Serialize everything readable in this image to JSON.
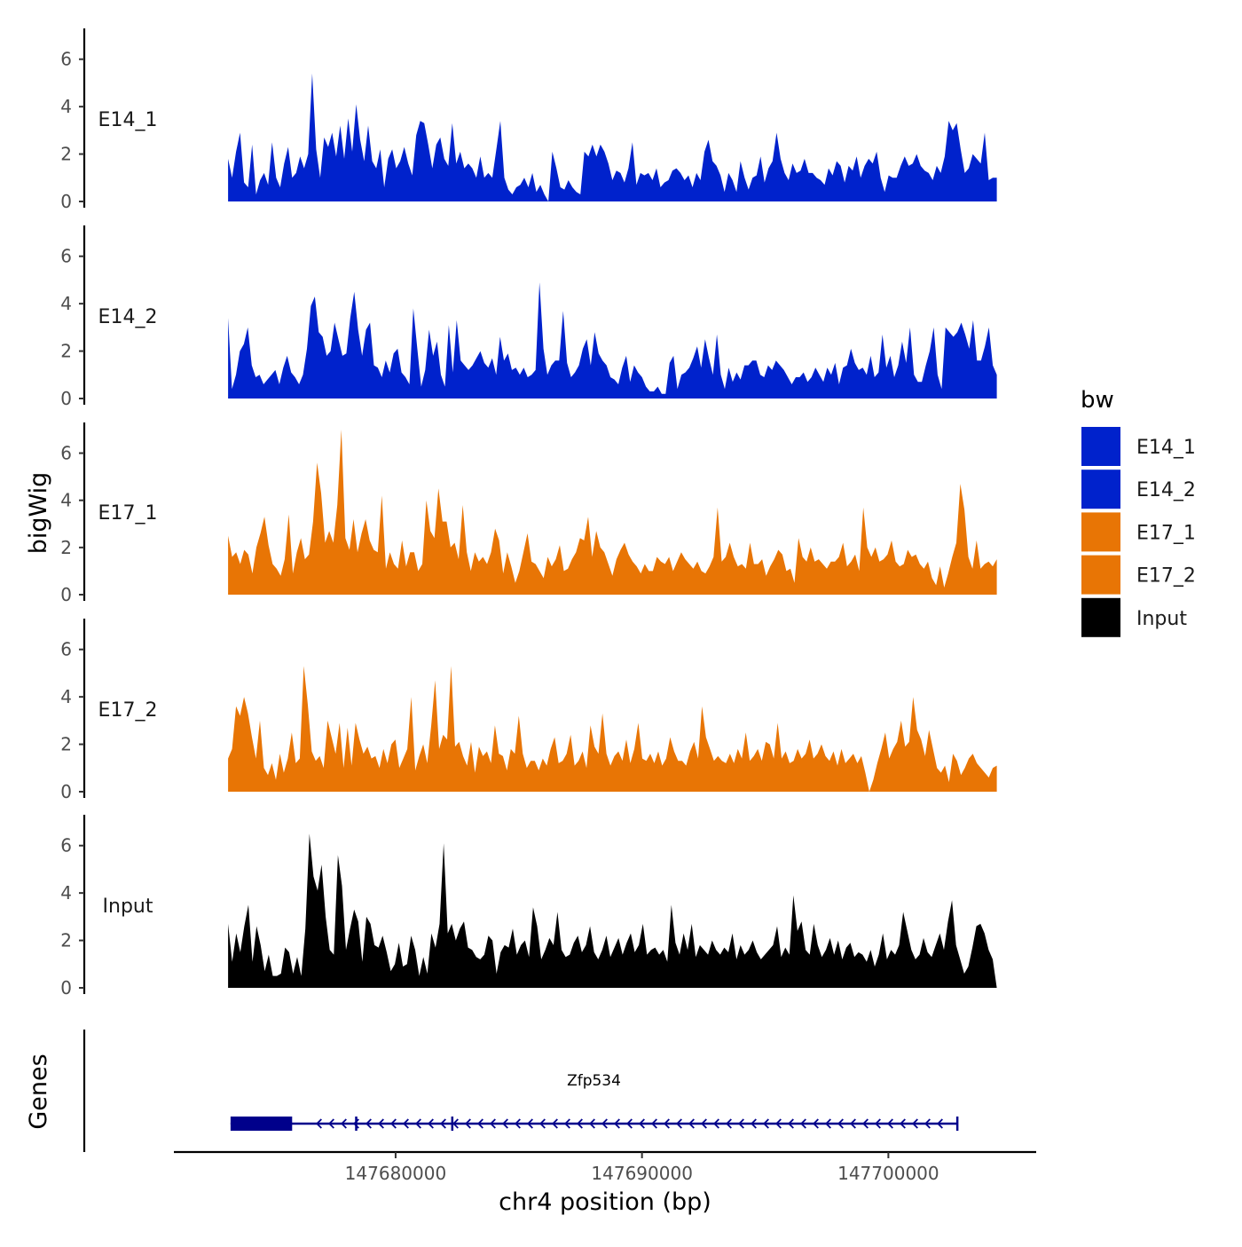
{
  "chart_data": {
    "type": "area",
    "ylabel": "bigWig",
    "xlabel": "chr4 position (bp)",
    "genes_label": "Genes",
    "xlim": [
      147671000,
      147706000
    ],
    "x_ticks": [
      147680000,
      147690000,
      147700000
    ],
    "x_tick_labels": [
      "147680000",
      "147690000",
      "147700000"
    ],
    "ylim": [
      0,
      7.3
    ],
    "y_ticks": [
      0,
      2,
      4,
      6
    ],
    "y_tick_labels": [
      "0",
      "2",
      "4",
      "6"
    ],
    "legend": {
      "title": "bw",
      "entries": [
        {
          "label": "E14_1",
          "color": "#0022cc"
        },
        {
          "label": "E14_2",
          "color": "#0022cc"
        },
        {
          "label": "E17_1",
          "color": "#e87505"
        },
        {
          "label": "E17_2",
          "color": "#e87505"
        },
        {
          "label": "Input",
          "color": "#000000"
        }
      ]
    },
    "x_start": 147673200,
    "x_end": 147704400,
    "tracks": [
      {
        "name": "E14_1",
        "color": "#0022cc",
        "values": [
          1.8,
          1.0,
          2.1,
          2.9,
          0.8,
          0.6,
          2.4,
          0.3,
          0.9,
          1.2,
          0.7,
          2.5,
          1.0,
          0.6,
          1.6,
          2.3,
          1.0,
          1.2,
          1.9,
          1.4,
          2.0,
          5.4,
          2.2,
          1.0,
          2.7,
          2.3,
          2.9,
          1.9,
          3.2,
          1.8,
          3.5,
          2.1,
          4.1,
          2.6,
          1.7,
          3.2,
          1.7,
          1.4,
          2.2,
          0.6,
          1.8,
          2.2,
          1.4,
          1.7,
          2.3,
          1.6,
          1.1,
          2.8,
          3.4,
          3.3,
          2.4,
          1.4,
          2.4,
          2.7,
          1.8,
          1.5,
          3.3,
          1.6,
          2.1,
          1.4,
          1.6,
          1.4,
          1.0,
          1.9,
          1.0,
          1.2,
          1.0,
          2.2,
          3.4,
          1.0,
          0.5,
          0.3,
          0.6,
          0.7,
          1.0,
          0.6,
          1.2,
          0.4,
          0.7,
          0.3,
          0.0,
          2.1,
          1.4,
          0.6,
          0.5,
          0.9,
          0.6,
          0.4,
          0.3,
          2.1,
          1.9,
          2.4,
          1.9,
          2.4,
          2.1,
          1.6,
          0.9,
          1.3,
          1.2,
          0.8,
          1.4,
          2.5,
          0.7,
          1.2,
          1.1,
          1.2,
          0.9,
          1.4,
          0.6,
          0.8,
          0.9,
          1.3,
          1.4,
          1.2,
          0.9,
          1.1,
          0.6,
          1.2,
          0.9,
          2.1,
          2.6,
          1.7,
          1.5,
          1.1,
          0.4,
          1.2,
          0.9,
          0.4,
          1.7,
          1.0,
          0.5,
          1.0,
          1.1,
          1.9,
          0.8,
          1.4,
          1.7,
          2.9,
          1.8,
          1.2,
          0.9,
          1.6,
          1.2,
          1.3,
          1.8,
          1.2,
          1.2,
          1.0,
          0.9,
          0.7,
          1.4,
          1.1,
          1.7,
          1.5,
          0.8,
          1.5,
          1.3,
          1.9,
          1.0,
          1.5,
          1.8,
          1.6,
          2.1,
          1.0,
          0.4,
          1.1,
          1.0,
          1.0,
          1.5,
          1.9,
          1.5,
          1.6,
          2.0,
          1.5,
          1.3,
          1.2,
          0.9,
          1.5,
          1.2,
          1.9,
          3.4,
          3.0,
          3.3,
          2.2,
          1.2,
          1.4,
          2.0,
          1.8,
          1.6,
          2.9,
          0.9,
          1.0,
          1.0
        ]
      },
      {
        "name": "E14_2",
        "color": "#0022cc",
        "values": [
          3.4,
          0.4,
          1.0,
          2.0,
          2.3,
          3.0,
          1.4,
          0.9,
          1.0,
          0.6,
          0.8,
          1.0,
          1.2,
          0.6,
          1.3,
          1.8,
          1.1,
          0.9,
          0.6,
          1.0,
          2.1,
          3.9,
          4.3,
          2.8,
          2.6,
          1.8,
          2.0,
          3.2,
          2.5,
          1.8,
          1.9,
          3.4,
          4.5,
          2.9,
          1.8,
          2.9,
          3.2,
          1.4,
          1.3,
          0.9,
          1.6,
          1.1,
          1.9,
          2.1,
          1.1,
          0.9,
          0.6,
          3.8,
          2.1,
          0.5,
          1.2,
          2.9,
          1.8,
          2.4,
          1.0,
          0.5,
          3.1,
          1.1,
          3.3,
          1.6,
          1.4,
          1.2,
          1.4,
          1.7,
          2.0,
          1.5,
          1.3,
          1.7,
          1.0,
          2.6,
          1.6,
          1.9,
          1.2,
          1.3,
          1.0,
          1.3,
          0.9,
          1.0,
          1.2,
          4.9,
          2.1,
          1.0,
          1.4,
          1.6,
          1.6,
          3.7,
          1.5,
          0.9,
          1.1,
          1.4,
          2.1,
          2.5,
          1.4,
          2.8,
          1.9,
          1.6,
          1.4,
          0.9,
          0.8,
          0.6,
          1.3,
          1.8,
          0.7,
          1.4,
          1.1,
          0.9,
          0.5,
          0.3,
          0.3,
          0.5,
          0.2,
          0.2,
          1.5,
          1.8,
          0.4,
          1.0,
          1.1,
          1.3,
          1.7,
          2.2,
          1.3,
          2.5,
          1.7,
          1.0,
          2.7,
          1.0,
          0.4,
          1.3,
          0.7,
          1.1,
          0.8,
          1.4,
          1.4,
          1.6,
          1.6,
          1.0,
          0.9,
          1.4,
          1.2,
          1.6,
          1.4,
          1.2,
          0.9,
          0.6,
          0.9,
          0.9,
          1.1,
          0.7,
          0.9,
          1.3,
          1.0,
          0.7,
          1.3,
          1.0,
          1.5,
          0.6,
          1.3,
          1.4,
          2.1,
          1.5,
          1.2,
          1.3,
          1.0,
          1.8,
          0.9,
          1.1,
          2.7,
          1.3,
          1.8,
          0.9,
          1.4,
          2.4,
          1.5,
          3.0,
          1.0,
          0.7,
          0.7,
          1.4,
          2.0,
          3.0,
          1.0,
          0.4,
          3.0,
          2.8,
          2.6,
          2.8,
          3.2,
          2.7,
          2.1,
          3.3,
          1.6,
          1.6,
          2.2,
          3.0,
          1.4,
          1.0
        ]
      },
      {
        "name": "E17_1",
        "color": "#e87505",
        "values": [
          2.5,
          1.6,
          1.8,
          1.3,
          1.9,
          1.7,
          0.9,
          2.0,
          2.6,
          3.3,
          2.1,
          1.3,
          1.1,
          0.8,
          1.5,
          3.4,
          0.9,
          1.8,
          2.4,
          1.5,
          1.7,
          3.1,
          5.6,
          4.3,
          2.2,
          2.7,
          2.2,
          3.8,
          7.0,
          2.4,
          1.9,
          3.2,
          1.8,
          2.6,
          3.2,
          2.3,
          1.9,
          1.8,
          4.2,
          1.1,
          1.8,
          1.3,
          1.1,
          2.3,
          1.2,
          1.8,
          1.8,
          1.0,
          1.3,
          4.0,
          2.7,
          2.4,
          4.5,
          3.1,
          3.1,
          2.0,
          2.2,
          1.5,
          3.8,
          1.8,
          1.0,
          1.8,
          1.4,
          1.6,
          1.3,
          1.8,
          2.8,
          2.3,
          0.9,
          1.8,
          1.2,
          0.5,
          1.0,
          1.8,
          2.6,
          1.4,
          1.3,
          1.0,
          0.7,
          1.6,
          1.2,
          1.5,
          2.1,
          1.0,
          1.1,
          1.5,
          1.8,
          2.4,
          2.3,
          3.3,
          1.6,
          2.7,
          2.0,
          1.8,
          1.3,
          0.8,
          1.5,
          1.9,
          2.2,
          1.7,
          1.4,
          1.2,
          0.9,
          1.3,
          1.0,
          1.0,
          1.6,
          1.4,
          1.3,
          1.6,
          1.0,
          1.4,
          1.8,
          1.5,
          1.3,
          1.1,
          1.4,
          1.0,
          0.9,
          1.2,
          1.6,
          3.7,
          1.4,
          1.6,
          2.2,
          1.6,
          1.2,
          1.3,
          1.1,
          2.2,
          1.3,
          1.3,
          1.5,
          0.8,
          1.2,
          1.5,
          1.9,
          1.7,
          1.0,
          1.1,
          0.5,
          2.4,
          1.6,
          1.4,
          2.0,
          1.4,
          1.5,
          1.3,
          1.1,
          1.4,
          1.4,
          1.6,
          2.2,
          1.2,
          1.4,
          1.7,
          1.0,
          3.7,
          2.0,
          1.6,
          2.0,
          1.4,
          1.5,
          1.7,
          2.3,
          1.4,
          1.2,
          1.3,
          1.9,
          1.6,
          1.7,
          1.3,
          1.1,
          1.4,
          0.7,
          0.4,
          1.2,
          0.3,
          0.9,
          1.6,
          2.2,
          4.7,
          3.6,
          1.6,
          1.1,
          2.3,
          1.1,
          1.3,
          1.4,
          1.2,
          1.5
        ]
      },
      {
        "name": "E17_2",
        "color": "#e87505",
        "values": [
          1.4,
          1.8,
          3.6,
          3.2,
          4.0,
          3.3,
          2.3,
          1.4,
          3.0,
          1.0,
          0.7,
          1.2,
          0.5,
          1.6,
          0.8,
          1.4,
          2.5,
          1.2,
          1.4,
          5.3,
          3.7,
          1.7,
          1.3,
          1.5,
          1.0,
          3.0,
          2.3,
          1.6,
          2.9,
          1.0,
          2.7,
          1.1,
          2.9,
          2.2,
          1.6,
          1.9,
          1.4,
          1.5,
          1.0,
          1.8,
          1.2,
          2.0,
          2.2,
          1.0,
          1.4,
          1.8,
          4.0,
          0.9,
          1.5,
          2.0,
          1.2,
          2.8,
          4.7,
          1.8,
          2.4,
          2.2,
          5.3,
          1.9,
          2.1,
          1.5,
          1.1,
          2.1,
          0.8,
          1.9,
          1.5,
          1.7,
          1.2,
          2.8,
          1.6,
          1.5,
          0.9,
          1.8,
          1.6,
          3.2,
          1.6,
          1.0,
          1.3,
          1.3,
          0.9,
          1.4,
          1.1,
          1.8,
          2.3,
          1.2,
          1.3,
          1.6,
          2.4,
          1.1,
          1.3,
          1.7,
          1.0,
          2.8,
          1.9,
          1.6,
          3.3,
          1.6,
          1.1,
          1.5,
          1.7,
          1.3,
          2.2,
          1.2,
          1.8,
          2.9,
          1.4,
          1.3,
          1.6,
          1.2,
          1.7,
          1.1,
          1.4,
          2.3,
          1.7,
          1.3,
          1.3,
          1.1,
          1.7,
          2.1,
          1.4,
          3.6,
          2.3,
          1.8,
          1.3,
          1.5,
          1.3,
          1.2,
          1.6,
          1.2,
          1.8,
          1.4,
          2.5,
          1.3,
          1.5,
          1.8,
          1.3,
          2.1,
          2.0,
          1.4,
          2.9,
          1.4,
          1.7,
          1.2,
          1.3,
          1.8,
          1.4,
          1.6,
          2.2,
          1.4,
          1.6,
          2.0,
          1.5,
          1.3,
          1.7,
          1.1,
          1.8,
          1.2,
          1.4,
          1.6,
          1.2,
          1.5,
          0.8,
          0.0,
          0.5,
          1.2,
          1.8,
          2.5,
          1.4,
          1.8,
          2.1,
          3.0,
          1.9,
          2.1,
          4.0,
          2.6,
          2.2,
          1.5,
          2.6,
          1.8,
          1.0,
          0.8,
          1.1,
          0.4,
          1.6,
          1.3,
          0.7,
          1.0,
          1.4,
          1.6,
          1.2,
          1.0,
          0.8,
          0.6,
          1.0,
          1.1
        ]
      },
      {
        "name": "Input",
        "color": "#000000",
        "values": [
          2.7,
          1.1,
          2.3,
          1.5,
          2.6,
          3.5,
          1.1,
          2.6,
          1.8,
          0.7,
          1.4,
          0.5,
          0.5,
          0.6,
          1.7,
          1.5,
          0.6,
          1.3,
          0.5,
          2.5,
          6.5,
          4.7,
          4.1,
          5.2,
          3.0,
          1.6,
          1.4,
          5.6,
          4.3,
          1.6,
          2.5,
          3.3,
          2.8,
          1.1,
          3.0,
          2.7,
          1.8,
          1.7,
          2.2,
          1.5,
          0.7,
          1.0,
          1.9,
          0.9,
          1.0,
          2.2,
          1.6,
          0.5,
          1.3,
          0.6,
          2.3,
          1.7,
          2.7,
          6.1,
          2.3,
          2.7,
          2.0,
          2.5,
          2.8,
          1.7,
          1.6,
          1.3,
          1.2,
          1.4,
          2.2,
          2.0,
          0.6,
          1.5,
          1.8,
          1.7,
          2.5,
          1.4,
          1.8,
          2.0,
          1.3,
          3.4,
          2.6,
          1.2,
          1.6,
          2.1,
          1.8,
          3.2,
          1.6,
          1.3,
          1.4,
          1.9,
          2.2,
          1.5,
          1.8,
          2.6,
          1.5,
          1.2,
          1.6,
          2.2,
          1.3,
          1.7,
          2.1,
          1.4,
          1.9,
          2.3,
          1.5,
          1.8,
          2.7,
          1.4,
          1.6,
          1.7,
          1.4,
          1.6,
          1.1,
          3.5,
          1.9,
          1.4,
          2.3,
          1.6,
          2.7,
          1.3,
          1.8,
          1.6,
          1.4,
          2.0,
          1.6,
          1.4,
          1.7,
          1.5,
          2.3,
          1.2,
          1.8,
          1.4,
          1.6,
          2.0,
          1.5,
          1.2,
          1.4,
          1.6,
          1.8,
          2.6,
          1.3,
          1.7,
          1.4,
          3.9,
          2.4,
          2.8,
          1.6,
          1.4,
          2.7,
          1.8,
          1.3,
          1.6,
          2.1,
          1.4,
          2.0,
          1.2,
          1.7,
          1.9,
          1.3,
          1.5,
          1.4,
          1.1,
          1.6,
          0.9,
          1.4,
          2.3,
          1.2,
          1.6,
          1.4,
          1.8,
          3.2,
          2.4,
          1.6,
          1.2,
          1.4,
          2.1,
          1.5,
          1.3,
          1.8,
          2.3,
          1.6,
          2.8,
          3.7,
          1.8,
          1.2,
          0.6,
          0.9,
          1.7,
          2.6,
          2.7,
          2.3,
          1.6,
          1.2,
          0.0
        ]
      }
    ],
    "gene": {
      "name": "Zfp534",
      "strand": "-",
      "start": 147673300,
      "end": 147702800,
      "thick_start": 147673300,
      "thick_end": 147675800,
      "exon_marks": [
        147678400,
        147682300,
        147702800
      ],
      "color": "#00008b"
    }
  }
}
